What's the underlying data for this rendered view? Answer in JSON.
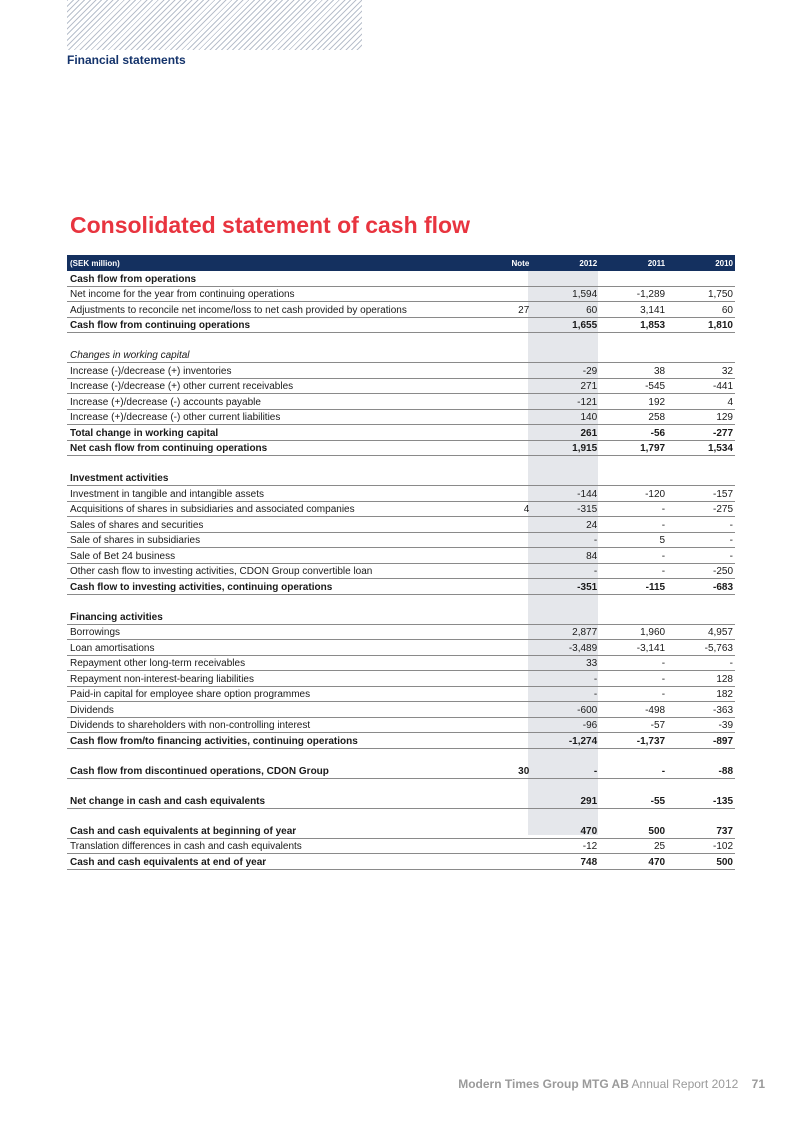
{
  "header": {
    "section": "Financial statements"
  },
  "title": "Consolidated statement of cash flow",
  "table": {
    "headers": {
      "unit": "(SEK million)",
      "note": "Note",
      "y1": "2012",
      "y2": "2011",
      "y3": "2010"
    },
    "rows": [
      {
        "label": "Cash flow from operations",
        "note": "",
        "v": [
          "",
          "",
          ""
        ],
        "style": "bold"
      },
      {
        "label": "Net income for the year from continuing operations",
        "note": "",
        "v": [
          "1,594",
          "-1,289",
          "1,750"
        ],
        "style": ""
      },
      {
        "label": "Adjustments to reconcile net income/loss to net cash provided by operations",
        "note": "27",
        "v": [
          "60",
          "3,141",
          "60"
        ],
        "style": ""
      },
      {
        "label": "Cash flow from continuing operations",
        "note": "",
        "v": [
          "1,655",
          "1,853",
          "1,810"
        ],
        "style": "bold"
      },
      {
        "label": "",
        "note": "",
        "v": [
          "",
          "",
          ""
        ],
        "style": "blank"
      },
      {
        "label": "Changes in working capital",
        "note": "",
        "v": [
          "",
          "",
          ""
        ],
        "style": "italic"
      },
      {
        "label": "Increase (-)/decrease (+) inventories",
        "note": "",
        "v": [
          "-29",
          "38",
          "32"
        ],
        "style": ""
      },
      {
        "label": "Increase (-)/decrease (+) other current receivables",
        "note": "",
        "v": [
          "271",
          "-545",
          "-441"
        ],
        "style": ""
      },
      {
        "label": "Increase (+)/decrease (-) accounts payable",
        "note": "",
        "v": [
          "-121",
          "192",
          "4"
        ],
        "style": ""
      },
      {
        "label": "Increase (+)/decrease (-) other current liabilities",
        "note": "",
        "v": [
          "140",
          "258",
          "129"
        ],
        "style": ""
      },
      {
        "label": "Total change in working capital",
        "note": "",
        "v": [
          "261",
          "-56",
          "-277"
        ],
        "style": "bold"
      },
      {
        "label": "Net cash flow from continuing operations",
        "note": "",
        "v": [
          "1,915",
          "1,797",
          "1,534"
        ],
        "style": "bold"
      },
      {
        "label": "",
        "note": "",
        "v": [
          "",
          "",
          ""
        ],
        "style": "blank"
      },
      {
        "label": "Investment activities",
        "note": "",
        "v": [
          "",
          "",
          ""
        ],
        "style": "bold"
      },
      {
        "label": "Investment in tangible and intangible assets",
        "note": "",
        "v": [
          "-144",
          "-120",
          "-157"
        ],
        "style": ""
      },
      {
        "label": "Acquisitions of shares in subsidiaries and associated companies",
        "note": "4",
        "v": [
          "-315",
          "-",
          "-275"
        ],
        "style": ""
      },
      {
        "label": "Sales of shares and securities",
        "note": "",
        "v": [
          "24",
          "-",
          "-"
        ],
        "style": ""
      },
      {
        "label": "Sale of shares in subsidiaries",
        "note": "",
        "v": [
          "-",
          "5",
          "-"
        ],
        "style": ""
      },
      {
        "label": "Sale of Bet 24 business",
        "note": "",
        "v": [
          "84",
          "-",
          "-"
        ],
        "style": ""
      },
      {
        "label": "Other cash flow to investing activities, CDON Group convertible loan",
        "note": "",
        "v": [
          "-",
          "-",
          "-250"
        ],
        "style": ""
      },
      {
        "label": "Cash flow to investing activities, continuing operations",
        "note": "",
        "v": [
          "-351",
          "-115",
          "-683"
        ],
        "style": "bold"
      },
      {
        "label": "",
        "note": "",
        "v": [
          "",
          "",
          ""
        ],
        "style": "blank"
      },
      {
        "label": "Financing activities",
        "note": "",
        "v": [
          "",
          "",
          ""
        ],
        "style": "bold"
      },
      {
        "label": "Borrowings",
        "note": "",
        "v": [
          "2,877",
          "1,960",
          "4,957"
        ],
        "style": ""
      },
      {
        "label": "Loan amortisations",
        "note": "",
        "v": [
          "-3,489",
          "-3,141",
          "-5,763"
        ],
        "style": ""
      },
      {
        "label": "Repayment other long-term receivables",
        "note": "",
        "v": [
          "33",
          "-",
          "-"
        ],
        "style": ""
      },
      {
        "label": "Repayment non-interest-bearing liabilities",
        "note": "",
        "v": [
          "-",
          "-",
          "128"
        ],
        "style": ""
      },
      {
        "label": "Paid-in capital for employee share option programmes",
        "note": "",
        "v": [
          "-",
          "-",
          "182"
        ],
        "style": ""
      },
      {
        "label": "Dividends",
        "note": "",
        "v": [
          "-600",
          "-498",
          "-363"
        ],
        "style": ""
      },
      {
        "label": "Dividends to shareholders with non-controlling interest",
        "note": "",
        "v": [
          "-96",
          "-57",
          "-39"
        ],
        "style": ""
      },
      {
        "label": "Cash flow from/to financing activities, continuing operations",
        "note": "",
        "v": [
          "-1,274",
          "-1,737",
          "-897"
        ],
        "style": "bold"
      },
      {
        "label": "",
        "note": "",
        "v": [
          "",
          "",
          ""
        ],
        "style": "blank"
      },
      {
        "label": "Cash flow from discontinued operations, CDON Group",
        "note": "30",
        "v": [
          "-",
          "-",
          "-88"
        ],
        "style": "bold"
      },
      {
        "label": "",
        "note": "",
        "v": [
          "",
          "",
          ""
        ],
        "style": "blank"
      },
      {
        "label": "Net change in cash and cash equivalents",
        "note": "",
        "v": [
          "291",
          "-55",
          "-135"
        ],
        "style": "bold"
      },
      {
        "label": "",
        "note": "",
        "v": [
          "",
          "",
          ""
        ],
        "style": "blank"
      },
      {
        "label": "Cash and cash equivalents at beginning of year",
        "note": "",
        "v": [
          "470",
          "500",
          "737"
        ],
        "style": "bold"
      },
      {
        "label": "Translation differences in cash and cash equivalents",
        "note": "",
        "v": [
          "-12",
          "25",
          "-102"
        ],
        "style": ""
      },
      {
        "label": "Cash and cash equivalents at end of year",
        "note": "",
        "v": [
          "748",
          "470",
          "500"
        ],
        "style": "bold"
      }
    ]
  },
  "footer": {
    "company": "Modern Times Group MTG AB",
    "report": "Annual Report 2012",
    "page": "71"
  }
}
